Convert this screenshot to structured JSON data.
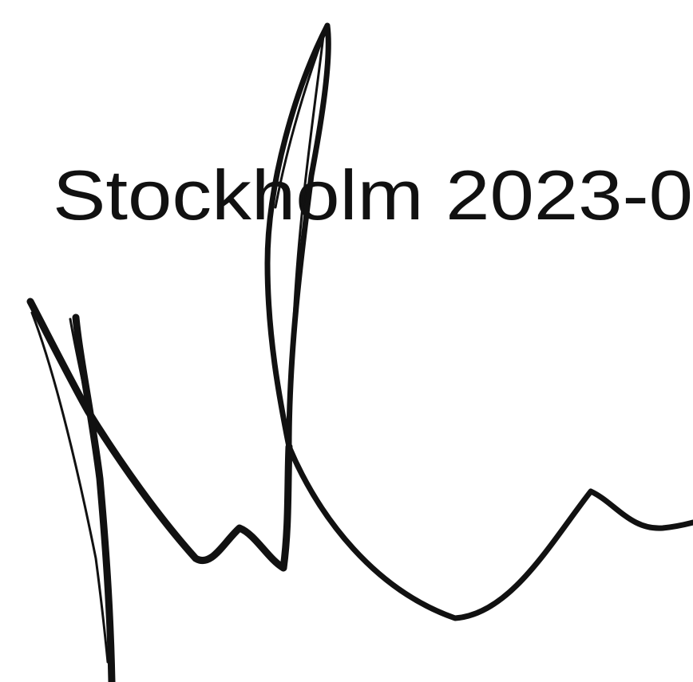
{
  "document": {
    "text": "Stockholm 2023-0"
  }
}
